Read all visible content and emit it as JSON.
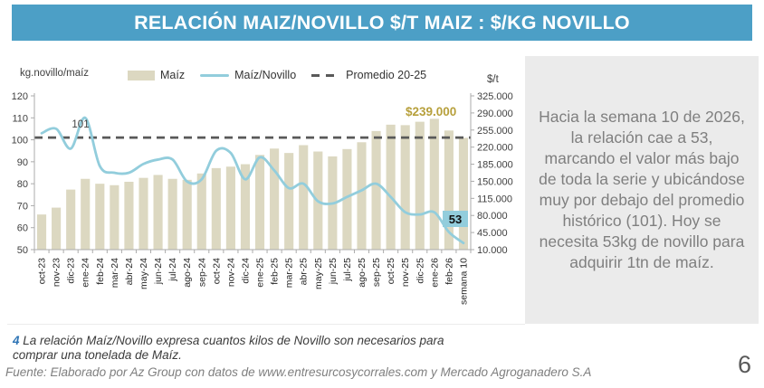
{
  "page": {
    "title": "RELACIÓN MAIZ/NOVILLO $/T MAIZ : $/KG NOVILLO",
    "page_number": "6",
    "side_note": "Hacia la semana 10 de 2026, la relación cae a 53, marcando el valor más bajo de toda la serie y ubicándose muy por debajo del promedio histórico (101). Hoy se necesita 53kg de novillo para adquirir 1tn de maíz.",
    "footnote": {
      "marker": "4",
      "text": "La relación Maíz/Novillo expresa cuantos kilos de Novillo son necesarios para comprar una tonelada de Maíz."
    },
    "source": "Fuente: Elaborado por Az Group con datos de www.entresurcosycorrales.com y Mercado Agroganadero S.A"
  },
  "colors": {
    "title_bar": "#4C9FC6",
    "bar_fill": "#DCD8C1",
    "line_stroke": "#92CDDC",
    "promedio_dash": "#595959",
    "price_label": "#B7A03C",
    "ratio_badge_bg": "#92CDDC",
    "panel_bg": "#EBEBEB",
    "panel_text": "#7F7F7F",
    "footnote_marker": "#2E74B5"
  },
  "chart_data": {
    "type": "bar+line combo",
    "legend_position": "top",
    "grid": "off",
    "categories": [
      "oct-23",
      "nov-23",
      "dic-23",
      "ene-24",
      "feb-24",
      "mar-24",
      "abr-24",
      "may-24",
      "jun-24",
      "jul-24",
      "ago-24",
      "sep-24",
      "oct-24",
      "nov-24",
      "dic-24",
      "ene-25",
      "feb-25",
      "mar-25",
      "abr-25",
      "may-25",
      "jun-25",
      "jul-25",
      "ago-25",
      "sep-25",
      "oct-25",
      "nov-25",
      "dic-25",
      "ene-26",
      "feb-26",
      "semana 10"
    ],
    "series": [
      {
        "name": "Maíz",
        "type": "bar",
        "axis": "right",
        "unit": "$/t",
        "values": [
          82000,
          96000,
          133000,
          155000,
          145000,
          142000,
          149000,
          157000,
          163000,
          155000,
          153000,
          166000,
          177000,
          180000,
          185000,
          204000,
          217000,
          208000,
          224000,
          211000,
          201000,
          216000,
          230000,
          253000,
          266000,
          265000,
          272000,
          278000,
          254000,
          239000
        ]
      },
      {
        "name": "Maíz/Novillo",
        "type": "line",
        "axis": "left",
        "unit": "kg.novillo/maíz",
        "values": [
          103,
          105,
          96,
          110,
          88,
          85,
          85,
          89,
          91,
          91,
          81,
          82,
          95,
          94,
          82,
          92,
          86,
          78,
          80,
          72,
          71,
          74,
          77,
          80,
          74,
          67,
          66,
          67,
          58,
          53
        ]
      },
      {
        "name": "Promedio 20-25",
        "type": "dashed-line",
        "axis": "left",
        "value": 101
      }
    ],
    "left_axis": {
      "title": "kg.novillo/maíz",
      "min": 50,
      "max": 120,
      "tick_labels": [
        "120",
        "110",
        "100",
        "90",
        "80",
        "70",
        "60",
        "50"
      ]
    },
    "right_axis": {
      "title": "$/t",
      "min": 10000,
      "max": 325000,
      "tick_labels": [
        "325.000",
        "290.000",
        "255.000",
        "220.000",
        "185.000",
        "150.000",
        "115.000",
        "80.000",
        "45.000",
        "10.000"
      ]
    },
    "annotations": {
      "promedio_value": "101",
      "last_price": "$239.000",
      "last_ratio": "53"
    }
  }
}
